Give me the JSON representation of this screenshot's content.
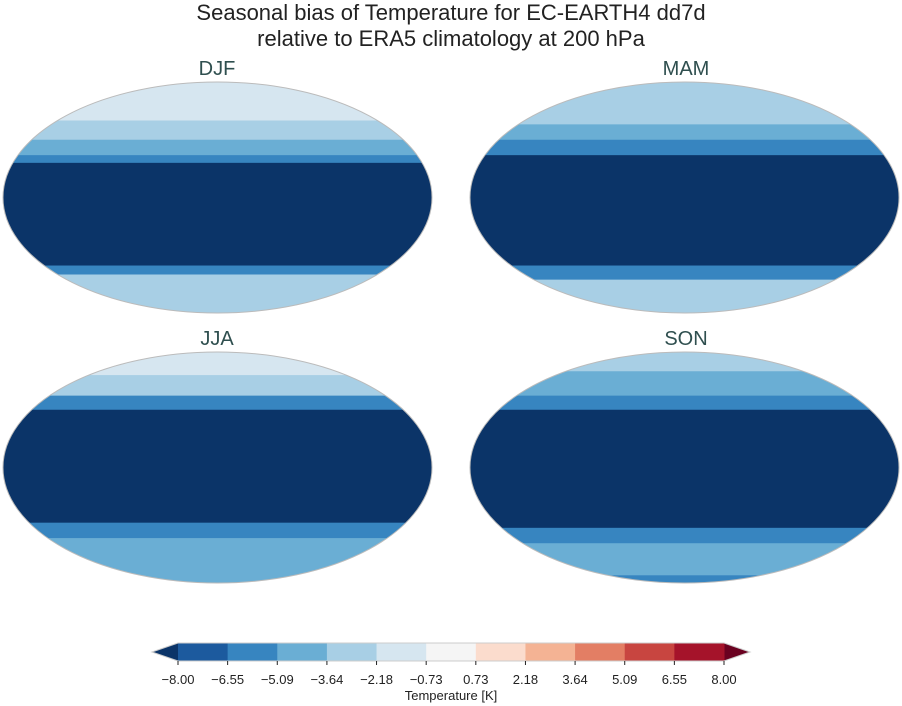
{
  "chart_data": {
    "type": "heatmap",
    "title": "Seasonal bias of Temperature for EC-EARTH4 dd7d",
    "subtitle": "relative to ERA5 climatology at 200 hPa",
    "projection": "Robinson",
    "colorbar": {
      "label": "Temperature [K]",
      "ticks": [
        "-8.00",
        "-6.55",
        "-5.09",
        "-3.64",
        "-2.18",
        "-0.73",
        "0.73",
        "2.18",
        "3.64",
        "5.09",
        "6.55",
        "8.00"
      ],
      "colors": [
        "#1c5a9e",
        "#3785c0",
        "#6aaed4",
        "#a8cfe5",
        "#d6e6f0",
        "#f5f5f5",
        "#fbdccd",
        "#f4b394",
        "#e37e64",
        "#c84540",
        "#a5132a"
      ],
      "under_color": "#0b3468",
      "over_color": "#6a0120",
      "extend": "both"
    },
    "panels": [
      {
        "name": "DJF",
        "zonal_bands": [
          [
            90,
            60,
            -1.5
          ],
          [
            60,
            45,
            -3.0
          ],
          [
            45,
            33,
            -4.4
          ],
          [
            33,
            27,
            -5.8
          ],
          [
            27,
            -53,
            -9
          ],
          [
            -53,
            -60,
            -5.8
          ],
          [
            -60,
            -90,
            -3.0
          ]
        ]
      },
      {
        "name": "MAM",
        "zonal_bands": [
          [
            90,
            75,
            -3.0
          ],
          [
            75,
            57,
            -3.0
          ],
          [
            57,
            45,
            -4.4
          ],
          [
            45,
            33,
            -5.8
          ],
          [
            33,
            -53,
            -9
          ],
          [
            -53,
            -64,
            -5.8
          ],
          [
            -64,
            -90,
            -3.0
          ]
        ]
      },
      {
        "name": "JJA",
        "zonal_bands": [
          [
            90,
            72,
            -1.5
          ],
          [
            72,
            56,
            -3.0
          ],
          [
            56,
            45,
            -5.8
          ],
          [
            45,
            -43,
            -9
          ],
          [
            -43,
            -55,
            -5.8
          ],
          [
            -55,
            -90,
            -4.4
          ]
        ]
      },
      {
        "name": "SON",
        "zonal_bands": [
          [
            90,
            75,
            -3.0
          ],
          [
            75,
            56,
            -4.4
          ],
          [
            56,
            45,
            -5.8
          ],
          [
            45,
            -47,
            -9
          ],
          [
            -47,
            -59,
            -5.8
          ],
          [
            -59,
            -84,
            -4.4
          ],
          [
            -84,
            -90,
            -5.8
          ]
        ]
      }
    ]
  }
}
